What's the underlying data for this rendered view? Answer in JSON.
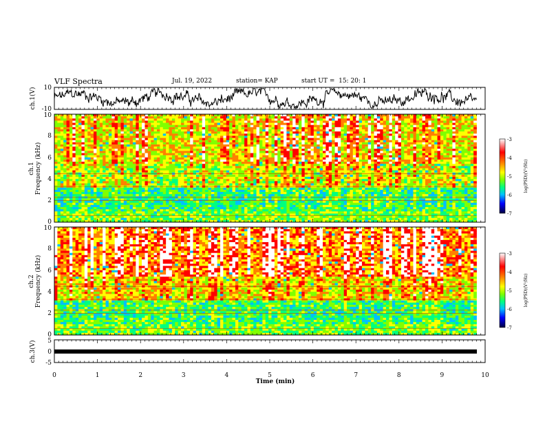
{
  "header": {
    "title": "VLF Spectra",
    "date": "Jul. 19, 2022",
    "station": "station= KAP",
    "start_ut": "start UT =  15: 20: 1"
  },
  "chart_data": [
    {
      "type": "line",
      "name": "ch1-waveform",
      "ylabel": "ch.1(V)",
      "ylim": [
        -10,
        10
      ],
      "yticks": [
        "10",
        "-10"
      ],
      "xlim": [
        0,
        10
      ]
    },
    {
      "type": "heatmap",
      "name": "ch1-spectrogram",
      "ylabel": "ch.1\nFrequency (kHz)",
      "ylabel_line1": "ch.1",
      "ylabel_line2": "Frequency (kHz)",
      "ylim": [
        0,
        10
      ],
      "yticks": [
        "0",
        "2",
        "4",
        "6",
        "8",
        "10"
      ],
      "xlim": [
        0,
        9.8
      ],
      "colorbar": {
        "label": "log(PSD)(V²/Hz)",
        "range": [
          -7,
          -3
        ],
        "ticks": [
          "-3",
          "-4",
          "-5",
          "-6",
          "-7"
        ]
      }
    },
    {
      "type": "heatmap",
      "name": "ch2-spectrogram",
      "ylabel": "ch.2\nFrequency (kHz)",
      "ylabel_line1": "ch.2",
      "ylabel_line2": "Frequency (kHz)",
      "ylim": [
        0,
        10
      ],
      "yticks": [
        "0",
        "2",
        "4",
        "6",
        "8",
        "10"
      ],
      "xlim": [
        0,
        9.8
      ],
      "colorbar": {
        "label": "log(PSD)(V²/Hz)",
        "range": [
          -7,
          -3
        ],
        "ticks": [
          "-3",
          "-4",
          "-5",
          "-6",
          "-7"
        ]
      }
    },
    {
      "type": "line",
      "name": "ch3-waveform",
      "ylabel": "ch.3(V)",
      "ylim": [
        -5,
        5
      ],
      "yticks": [
        "5",
        "0",
        "-5"
      ],
      "xlim": [
        0,
        10
      ]
    }
  ],
  "xaxis": {
    "label": "Time (min)",
    "ticks": [
      "0",
      "1",
      "2",
      "3",
      "4",
      "5",
      "6",
      "7",
      "8",
      "9",
      "10"
    ],
    "range": [
      0,
      10
    ]
  },
  "colors": {
    "palette": [
      "#000060",
      "#0000ff",
      "#00c0ff",
      "#00ff80",
      "#80ff00",
      "#ffff00",
      "#ff8000",
      "#ff0000",
      "#ffffff"
    ]
  }
}
